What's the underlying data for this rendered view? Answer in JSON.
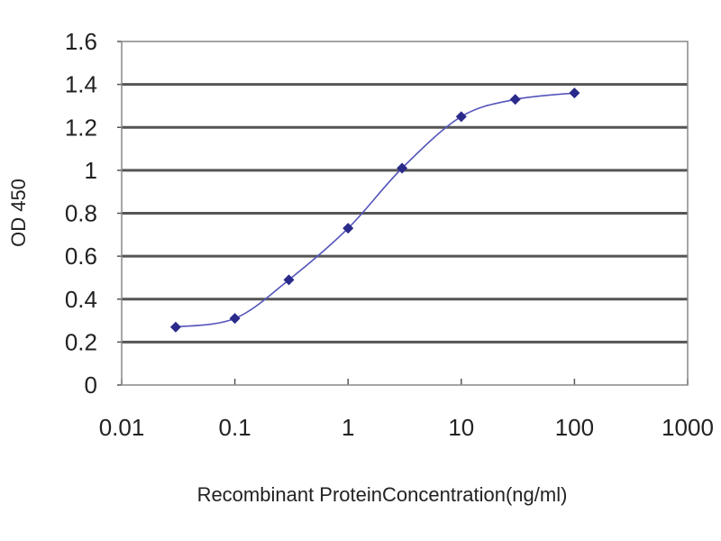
{
  "chart_data": {
    "type": "line",
    "title": "",
    "xlabel": "Recombinant ProteinConcentration(ng/ml)",
    "ylabel": "OD 450",
    "xscale": "log",
    "xlim": [
      0.01,
      1000
    ],
    "ylim": [
      0,
      1.6
    ],
    "x_ticks": [
      "0.01",
      "0.1",
      "1",
      "10",
      "100",
      "1000"
    ],
    "y_ticks": [
      "0",
      "0.2",
      "0.4",
      "0.6",
      "0.8",
      "1",
      "1.2",
      "1.4",
      "1.6"
    ],
    "grid": "horizontal",
    "legend": "none",
    "series": [
      {
        "color": "#2a2a8a",
        "marker": "diamond",
        "x": [
          0.03,
          0.1,
          0.3,
          1,
          3,
          10,
          30,
          100
        ],
        "y": [
          0.27,
          0.31,
          0.49,
          0.73,
          1.01,
          1.25,
          1.33,
          1.36
        ]
      }
    ]
  }
}
